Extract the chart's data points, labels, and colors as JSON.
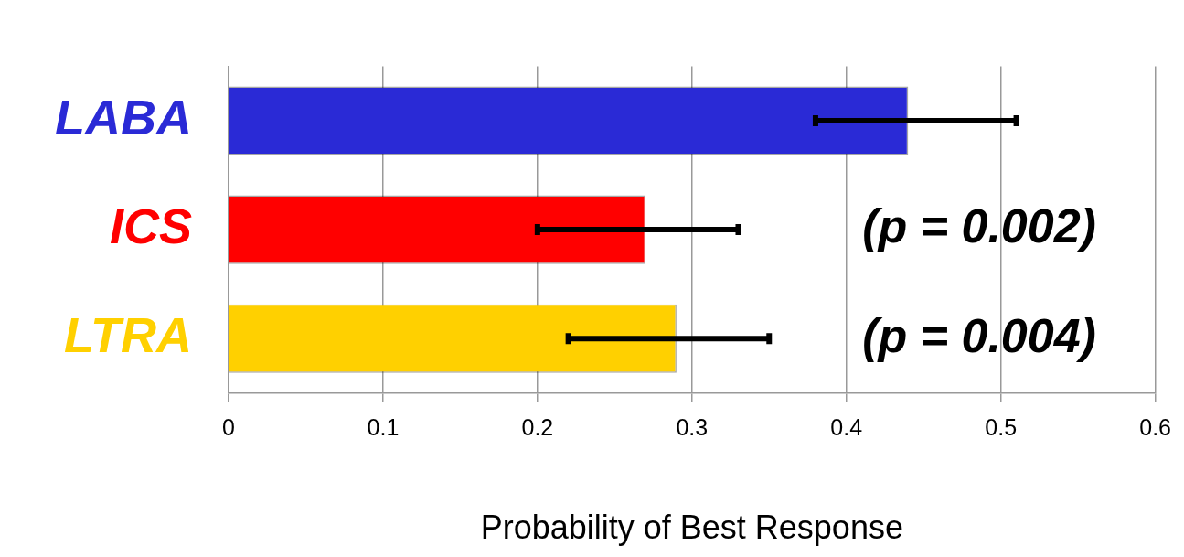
{
  "chart_data": {
    "type": "bar",
    "orientation": "horizontal",
    "xlabel": "Probability of Best Response",
    "categories": [
      "LABA",
      "ICS",
      "LTRA"
    ],
    "values": [
      0.44,
      0.27,
      0.29
    ],
    "colors": [
      "#2a2ad6",
      "#ff0000",
      "#ffd000"
    ],
    "errors": [
      [
        0.38,
        0.51
      ],
      [
        0.2,
        0.33
      ],
      [
        0.22,
        0.35
      ]
    ],
    "xlim": [
      0,
      0.6
    ],
    "xticks": [
      0,
      0.1,
      0.2,
      0.3,
      0.4,
      0.5,
      0.6
    ],
    "grid": "x",
    "legend": false,
    "annotations": [
      "(p = 0.002)",
      "(p = 0.004)"
    ]
  }
}
